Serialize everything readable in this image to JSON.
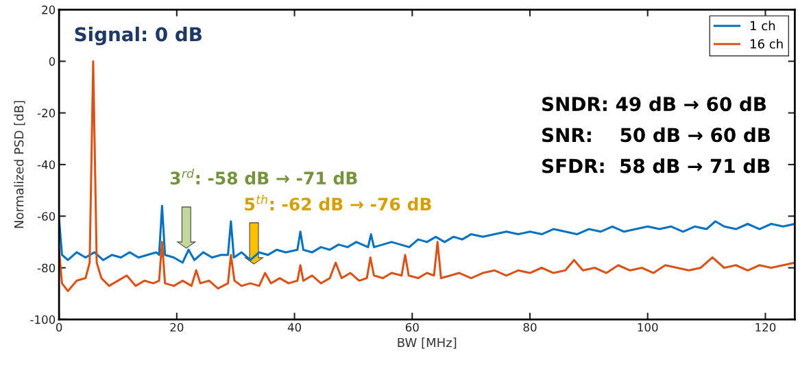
{
  "chart_data": {
    "type": "line",
    "xlabel": "BW [MHz]",
    "ylabel": "Normalized PSD [dB]",
    "xlim": [
      0,
      125
    ],
    "xticks": [
      0,
      20,
      40,
      60,
      80,
      100,
      120
    ],
    "ylim": [
      -100,
      20
    ],
    "yticks": [
      -100,
      -80,
      -60,
      -40,
      -20,
      0,
      20
    ],
    "grid": false,
    "legend": "top right",
    "marker": "none",
    "line_style": "solid",
    "annotations": [
      "Signal: 0 dB",
      "SNDR: 49 dB → 60 dB",
      "SNR:    50 dB → 60 dB",
      "SFDR:  58 dB → 71 dB",
      "3$^{rd}$: -58 dB → -71 dB",
      "5$^{th}$: -62 dB → -76 dB"
    ],
    "series": [
      {
        "name": "1 ch",
        "color": "#0072bd",
        "x": [
          0,
          0.5,
          1.5,
          3,
          4.5,
          6,
          7.5,
          9,
          10.5,
          12,
          13.5,
          15,
          16.5,
          17,
          17.5,
          18,
          19.5,
          21,
          22,
          23,
          24.5,
          26,
          27.5,
          28.7,
          29.2,
          29.7,
          31,
          32.5,
          34,
          35.5,
          37,
          38.5,
          40.5,
          41,
          41.5,
          43,
          44.5,
          46,
          47.5,
          49,
          50.5,
          52.5,
          53,
          53.5,
          55,
          56.5,
          58,
          59.5,
          61,
          62.5,
          64,
          65.5,
          67,
          68.5,
          70,
          72,
          74,
          76,
          78,
          80,
          82,
          84,
          86,
          88,
          90,
          92,
          94,
          96,
          98,
          100,
          102,
          104,
          106,
          108,
          110,
          111.5,
          113,
          115,
          117,
          119,
          121,
          123,
          125
        ],
        "values": [
          -61,
          -75,
          -77,
          -74,
          -76,
          -74,
          -77,
          -75,
          -76,
          -74,
          -76,
          -75,
          -74,
          -75,
          -56,
          -75,
          -76,
          -78,
          -73,
          -77,
          -74,
          -76,
          -75,
          -75,
          -62,
          -76,
          -74,
          -77,
          -74,
          -75,
          -73,
          -74,
          -73,
          -66,
          -73,
          -74,
          -72,
          -73,
          -71,
          -72,
          -70,
          -72,
          -67,
          -72,
          -71,
          -70,
          -71,
          -72,
          -69,
          -70,
          -68,
          -70,
          -68,
          -69,
          -67,
          -68,
          -67,
          -66,
          -67,
          -66,
          -67,
          -65,
          -66,
          -67,
          -65,
          -66,
          -64,
          -66,
          -65,
          -64,
          -65,
          -64,
          -66,
          -64,
          -65,
          -62,
          -64,
          -65,
          -63,
          -65,
          -63,
          -64,
          -63
        ]
      },
      {
        "name": "16 ch",
        "color": "#d95319",
        "x": [
          0,
          0.5,
          1.5,
          3,
          4.5,
          5.2,
          5.8,
          6.4,
          7.2,
          8.5,
          10,
          11.5,
          13,
          14.5,
          16,
          17,
          17.5,
          18,
          19.5,
          21,
          22.5,
          23.3,
          24,
          25.5,
          27,
          28.7,
          29.2,
          29.8,
          31,
          32.5,
          34,
          35,
          36,
          37.5,
          39,
          40.5,
          41,
          41.5,
          43,
          44.5,
          46,
          47,
          48,
          49.5,
          51,
          52.3,
          52.9,
          53.5,
          55,
          56.5,
          58.2,
          58.8,
          59.4,
          61,
          62.5,
          63.7,
          64.3,
          64.9,
          66.5,
          68,
          70,
          72,
          74,
          76,
          78,
          80,
          82,
          84,
          86,
          87.5,
          89,
          91,
          93,
          95,
          97,
          99,
          101,
          103,
          105,
          107,
          109,
          111,
          113,
          115,
          117,
          119,
          121,
          123,
          125
        ],
        "values": [
          -73,
          -86,
          -89,
          -85,
          -84,
          -78,
          0,
          -78,
          -84,
          -87,
          -85,
          -83,
          -87,
          -85,
          -86,
          -85,
          -70,
          -86,
          -87,
          -85,
          -87,
          -81,
          -86,
          -85,
          -88,
          -86,
          -75,
          -85,
          -87,
          -86,
          -87,
          -82,
          -86,
          -84,
          -86,
          -85,
          -79,
          -85,
          -83,
          -86,
          -84,
          -78,
          -84,
          -82,
          -85,
          -84,
          -76,
          -83,
          -84,
          -82,
          -83,
          -75,
          -83,
          -84,
          -82,
          -83,
          -70,
          -84,
          -83,
          -82,
          -84,
          -82,
          -81,
          -83,
          -81,
          -82,
          -80,
          -82,
          -81,
          -77,
          -81,
          -80,
          -82,
          -79,
          -81,
          -80,
          -82,
          -79,
          -80,
          -81,
          -80,
          -76,
          -80,
          -79,
          -81,
          -79,
          -80,
          -79,
          -78
        ]
      }
    ]
  }
}
